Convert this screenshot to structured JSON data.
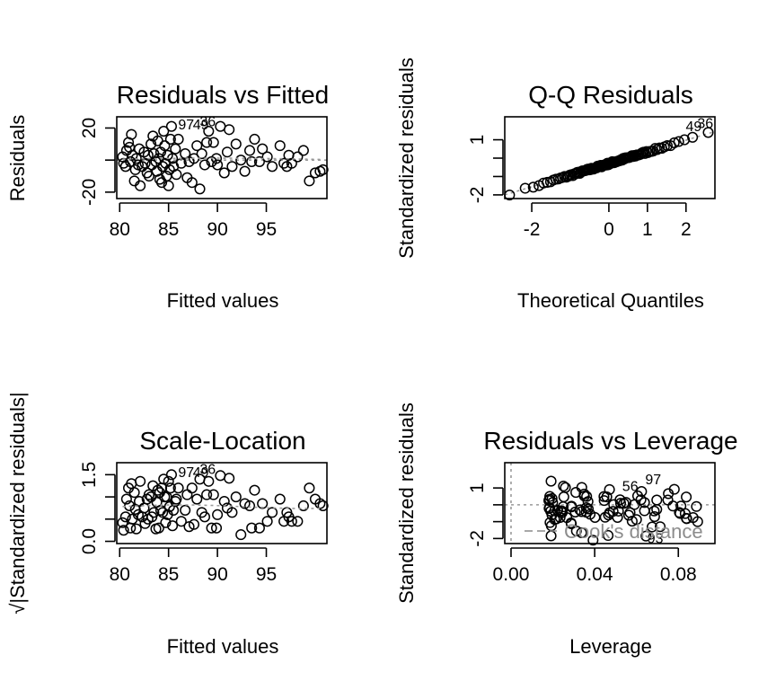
{
  "chart_data": [
    {
      "type": "scatter",
      "title": "Residuals vs Fitted",
      "xlabel": "Fitted values",
      "ylabel": "Residuals",
      "xlim": [
        79.7,
        101.2
      ],
      "ylim": [
        -24,
        27
      ],
      "xticks": [
        80,
        85,
        90,
        95
      ],
      "yticks": [
        -20,
        20
      ],
      "grid": false,
      "reference_line": {
        "y": 0,
        "style": "dotted"
      },
      "labeled_points": [
        {
          "label": "97",
          "x": 86.8,
          "y": 22
        },
        {
          "label": "49",
          "x": 88.3,
          "y": 22
        },
        {
          "label": "36",
          "x": 89.0,
          "y": 24
        }
      ],
      "points": [
        [
          80.3,
          2
        ],
        [
          80.4,
          -2
        ],
        [
          80.6,
          -4
        ],
        [
          80.7,
          6
        ],
        [
          80.9,
          11
        ],
        [
          81.0,
          8
        ],
        [
          81.1,
          -1
        ],
        [
          81.2,
          16
        ],
        [
          81.3,
          3
        ],
        [
          81.5,
          -13
        ],
        [
          81.6,
          -6
        ],
        [
          81.7,
          1
        ],
        [
          81.9,
          -3
        ],
        [
          82.0,
          7
        ],
        [
          82.1,
          -16
        ],
        [
          82.3,
          -4
        ],
        [
          82.5,
          5
        ],
        [
          82.6,
          -2
        ],
        [
          82.8,
          -8
        ],
        [
          82.9,
          3
        ],
        [
          83.0,
          -10
        ],
        [
          83.2,
          10
        ],
        [
          83.3,
          -3
        ],
        [
          83.4,
          15
        ],
        [
          83.5,
          4
        ],
        [
          83.7,
          -1
        ],
        [
          83.8,
          -7
        ],
        [
          83.9,
          12
        ],
        [
          84.0,
          1
        ],
        [
          84.1,
          -12
        ],
        [
          84.2,
          5
        ],
        [
          84.3,
          -14
        ],
        [
          84.4,
          -4
        ],
        [
          84.5,
          18
        ],
        [
          84.6,
          9
        ],
        [
          84.7,
          -2
        ],
        [
          84.8,
          -10
        ],
        [
          84.9,
          3
        ],
        [
          85.0,
          -16
        ],
        [
          85.1,
          -6
        ],
        [
          85.2,
          13
        ],
        [
          85.3,
          21
        ],
        [
          85.4,
          1
        ],
        [
          85.5,
          -4
        ],
        [
          85.7,
          7
        ],
        [
          85.8,
          -9
        ],
        [
          86.0,
          13
        ],
        [
          86.3,
          -2
        ],
        [
          86.7,
          4
        ],
        [
          86.9,
          -11
        ],
        [
          87.1,
          -1
        ],
        [
          87.4,
          -14
        ],
        [
          87.6,
          1
        ],
        [
          87.9,
          9
        ],
        [
          88.2,
          -18
        ],
        [
          88.4,
          4
        ],
        [
          88.7,
          -3
        ],
        [
          88.9,
          11
        ],
        [
          89.1,
          18
        ],
        [
          89.4,
          -1
        ],
        [
          89.6,
          11
        ],
        [
          89.9,
          1
        ],
        [
          90.0,
          -3
        ],
        [
          90.3,
          21
        ],
        [
          90.7,
          -8
        ],
        [
          91.0,
          5
        ],
        [
          91.2,
          19
        ],
        [
          91.5,
          -4
        ],
        [
          91.9,
          10
        ],
        [
          92.4,
          0
        ],
        [
          92.8,
          -7
        ],
        [
          93.3,
          6
        ],
        [
          93.5,
          -1
        ],
        [
          93.8,
          13
        ],
        [
          94.3,
          -1
        ],
        [
          94.6,
          7
        ],
        [
          95.1,
          2
        ],
        [
          95.6,
          -4
        ],
        [
          96.4,
          9
        ],
        [
          96.8,
          -2
        ],
        [
          97.1,
          -4
        ],
        [
          97.3,
          3
        ],
        [
          97.6,
          -2
        ],
        [
          98.2,
          2
        ],
        [
          98.8,
          6
        ],
        [
          99.4,
          -13
        ],
        [
          100.0,
          -8
        ],
        [
          100.5,
          -7
        ],
        [
          100.8,
          -6
        ]
      ]
    },
    {
      "type": "scatter",
      "title": "Q-Q Residuals",
      "xlabel": "Theoretical Quantiles",
      "ylabel": "Standardized residuals",
      "xlim": [
        -2.7,
        2.75
      ],
      "ylim": [
        -2.2,
        2.25
      ],
      "xticks": [
        -2,
        0,
        1,
        2
      ],
      "yticks": [
        -2,
        1
      ],
      "grid": false,
      "reference_line": {
        "from": [
          -2.7,
          -2.0
        ],
        "to": [
          2.75,
          1.45
        ],
        "style": "dotted"
      },
      "labeled_points": [
        {
          "label": "49",
          "x": 2.2,
          "y": 1.72
        },
        {
          "label": "36",
          "x": 2.5,
          "y": 1.88
        }
      ]
    },
    {
      "type": "scatter",
      "title": "Scale-Location",
      "xlabel": "Fitted values",
      "ylabel": "√|Standardized residuals|",
      "xlim": [
        79.7,
        101.2
      ],
      "ylim": [
        -0.05,
        1.77
      ],
      "xticks": [
        80,
        85,
        90,
        95
      ],
      "yticks": [
        0.0,
        1.5
      ],
      "ytick_labels": [
        "0.0",
        "1.5"
      ],
      "grid": false,
      "labeled_points": [
        {
          "label": "97",
          "x": 86.8,
          "y": 1.55
        },
        {
          "label": "49",
          "x": 88.3,
          "y": 1.55
        },
        {
          "label": "36",
          "x": 89.0,
          "y": 1.62
        }
      ],
      "points": [
        [
          80.3,
          0.42
        ],
        [
          80.4,
          0.25
        ],
        [
          80.6,
          0.55
        ],
        [
          80.7,
          0.95
        ],
        [
          80.9,
          1.2
        ],
        [
          81.0,
          0.8
        ],
        [
          81.1,
          0.3
        ],
        [
          81.2,
          1.3
        ],
        [
          81.3,
          0.5
        ],
        [
          81.5,
          1.1
        ],
        [
          81.6,
          0.72
        ],
        [
          81.7,
          0.28
        ],
        [
          81.9,
          0.6
        ],
        [
          82.0,
          0.9
        ],
        [
          82.1,
          1.35
        ],
        [
          82.3,
          0.55
        ],
        [
          82.5,
          0.75
        ],
        [
          82.6,
          0.4
        ],
        [
          82.8,
          0.95
        ],
        [
          82.9,
          0.5
        ],
        [
          83.0,
          1.05
        ],
        [
          83.2,
          1.0
        ],
        [
          83.3,
          0.55
        ],
        [
          83.4,
          1.25
        ],
        [
          83.5,
          0.65
        ],
        [
          83.7,
          0.28
        ],
        [
          83.8,
          0.88
        ],
        [
          83.9,
          1.15
        ],
        [
          84.0,
          0.3
        ],
        [
          84.1,
          1.1
        ],
        [
          84.2,
          0.7
        ],
        [
          84.3,
          1.2
        ],
        [
          84.4,
          0.65
        ],
        [
          84.5,
          1.4
        ],
        [
          84.6,
          1.0
        ],
        [
          84.7,
          0.42
        ],
        [
          84.8,
          1.0
        ],
        [
          84.9,
          0.6
        ],
        [
          85.0,
          1.35
        ],
        [
          85.1,
          0.78
        ],
        [
          85.2,
          1.2
        ],
        [
          85.3,
          1.5
        ],
        [
          85.4,
          0.35
        ],
        [
          85.5,
          0.7
        ],
        [
          85.7,
          0.9
        ],
        [
          85.8,
          0.95
        ],
        [
          86.0,
          1.2
        ],
        [
          86.3,
          0.45
        ],
        [
          86.7,
          0.7
        ],
        [
          86.9,
          1.05
        ],
        [
          87.1,
          0.33
        ],
        [
          87.4,
          1.2
        ],
        [
          87.6,
          0.38
        ],
        [
          87.9,
          0.95
        ],
        [
          88.2,
          1.4
        ],
        [
          88.4,
          0.65
        ],
        [
          88.7,
          0.55
        ],
        [
          88.9,
          1.05
        ],
        [
          89.1,
          1.35
        ],
        [
          89.4,
          0.3
        ],
        [
          89.6,
          1.05
        ],
        [
          89.9,
          0.3
        ],
        [
          90.0,
          0.6
        ],
        [
          90.3,
          1.48
        ],
        [
          90.7,
          0.9
        ],
        [
          91.0,
          0.75
        ],
        [
          91.2,
          1.42
        ],
        [
          91.5,
          0.65
        ],
        [
          91.9,
          1.0
        ],
        [
          92.4,
          0.15
        ],
        [
          92.8,
          0.85
        ],
        [
          93.3,
          0.8
        ],
        [
          93.5,
          0.3
        ],
        [
          93.8,
          1.15
        ],
        [
          94.3,
          0.3
        ],
        [
          94.6,
          0.85
        ],
        [
          95.1,
          0.45
        ],
        [
          95.6,
          0.65
        ],
        [
          96.4,
          0.95
        ],
        [
          96.8,
          0.45
        ],
        [
          97.1,
          0.65
        ],
        [
          97.3,
          0.55
        ],
        [
          97.6,
          0.45
        ],
        [
          98.2,
          0.45
        ],
        [
          98.8,
          0.8
        ],
        [
          99.4,
          1.2
        ],
        [
          100.0,
          0.95
        ],
        [
          100.5,
          0.85
        ],
        [
          100.8,
          0.8
        ]
      ]
    },
    {
      "type": "scatter",
      "title": "Residuals vs Leverage",
      "xlabel": "Leverage",
      "ylabel": "Standardized residuals",
      "xlim": [
        -0.003,
        0.0975
      ],
      "ylim": [
        -2.3,
        2.5
      ],
      "xticks": [
        0.0,
        0.04,
        0.08
      ],
      "xtick_labels": [
        "0.00",
        "0.04",
        "0.08"
      ],
      "yticks": [
        -2,
        1
      ],
      "grid": false,
      "reference_lines": [
        {
          "y": 0,
          "style": "dotted"
        },
        {
          "x": 0,
          "style": "dotted"
        }
      ],
      "legend": {
        "entries": [
          "Cook's distance"
        ],
        "placement": "bottom-right"
      },
      "labeled_points": [
        {
          "label": "56",
          "x": 0.057,
          "y": 1.1
        },
        {
          "label": "97",
          "x": 0.068,
          "y": 1.5
        },
        {
          "label": "93",
          "x": 0.069,
          "y": -2.0
        }
      ]
    }
  ]
}
